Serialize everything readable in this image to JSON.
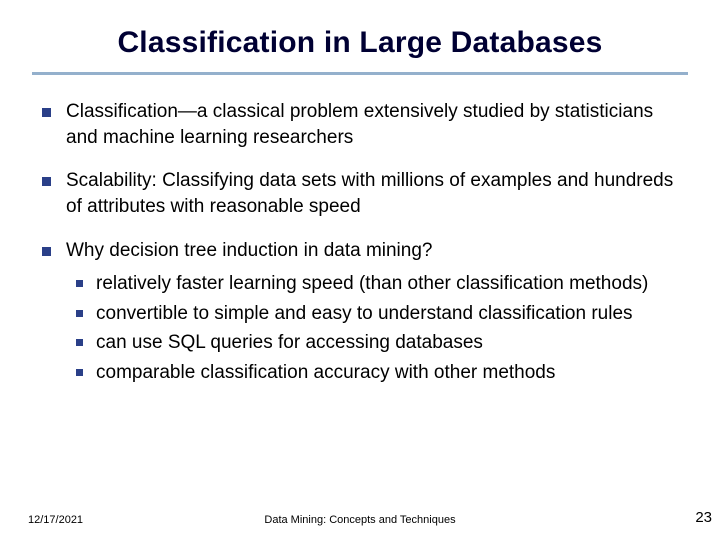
{
  "title": "Classification in Large Databases",
  "bullet_color": "#2a3f88",
  "rule_color": "#94b0cc",
  "title_color": "#000033",
  "body_fontsize": 19,
  "title_fontsize": 30,
  "bullets": [
    {
      "text": "Classification—a classical problem extensively studied by statisticians and machine learning researchers"
    },
    {
      "text": "Scalability: Classifying data sets with millions of examples and hundreds of attributes with reasonable speed"
    },
    {
      "text": "Why decision tree induction in data mining?",
      "sub": [
        "relatively faster learning speed (than other classification methods)",
        "convertible to simple and easy to understand classification rules",
        "can use SQL queries for accessing databases",
        "comparable classification accuracy with other methods"
      ]
    }
  ],
  "footer": {
    "date": "12/17/2021",
    "center": "Data Mining: Concepts and Techniques",
    "pagenum": "23"
  }
}
